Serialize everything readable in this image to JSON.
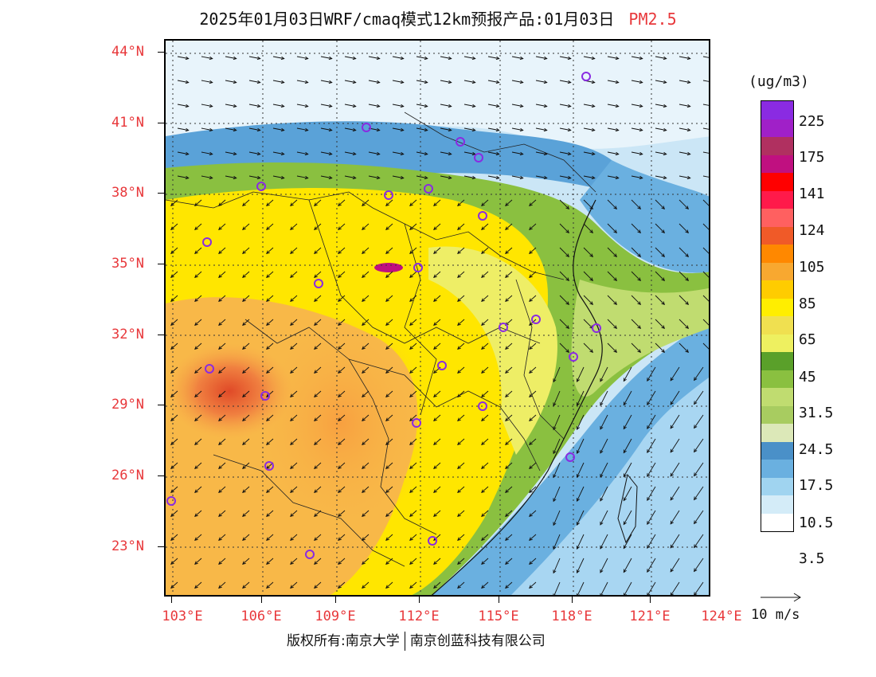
{
  "title": {
    "main": "2025年01月03日WRF/cmaq模式12km预报产品:01月03日",
    "pollutant": "PM2.5"
  },
  "axes": {
    "lat_labels": [
      "44°N",
      "41°N",
      "38°N",
      "35°N",
      "32°N",
      "29°N",
      "26°N",
      "23°N"
    ],
    "lon_labels": [
      "103°E",
      "106°E",
      "109°E",
      "112°E",
      "115°E",
      "118°E",
      "121°E",
      "124°E"
    ]
  },
  "legend": {
    "unit": "(ug/m3)",
    "labels": [
      "225",
      "175",
      "141",
      "124",
      "105",
      "85",
      "65",
      "45",
      "31.5",
      "24.5",
      "17.5",
      "10.5",
      "3.5"
    ],
    "colors": [
      "#8a2be2",
      "#a020c8",
      "#b03060",
      "#c01080",
      "#ff0000",
      "#ff1a4a",
      "#ff6060",
      "#f05a28",
      "#ff8800",
      "#f8a830",
      "#ffcc00",
      "#ffee00",
      "#f0e050",
      "#eef060",
      "#5aa02a",
      "#8ac040",
      "#c0dc70",
      "#a8cc60",
      "#dce8b8",
      "#4a90c8",
      "#6ab0e0",
      "#a0d4f0",
      "#d4ecf8",
      "#ffffff"
    ]
  },
  "wind_scale": "10 m/s",
  "footer": {
    "left": "版权所有:南京大学",
    "right": "南京创蓝科技有限公司"
  }
}
